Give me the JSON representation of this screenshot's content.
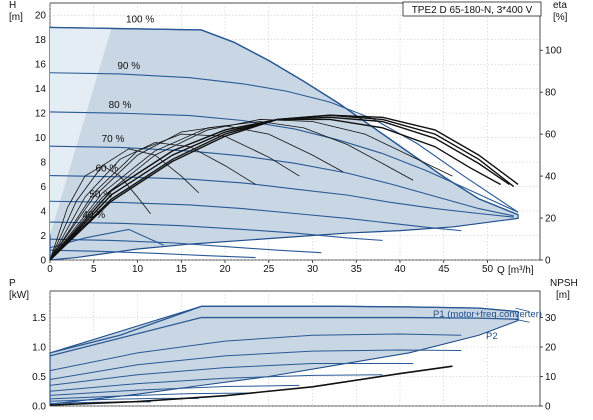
{
  "chart_data": [
    {
      "type": "line",
      "title": "TPE2 D 65-180-N, 3*400 V",
      "ylabel": "H",
      "yunit": "[m]",
      "y2label": "eta",
      "y2unit": "[%]",
      "xlabel": "Q",
      "xunit": "[m³/h]",
      "xlim": [
        0,
        56
      ],
      "ylim": [
        0,
        21
      ],
      "y2lim": [
        0,
        122.5
      ],
      "xticks": [
        0,
        5,
        10,
        15,
        20,
        25,
        30,
        35,
        40,
        45,
        50
      ],
      "yticks": [
        0,
        2,
        4,
        6,
        8,
        10,
        12,
        14,
        16,
        18,
        20
      ],
      "y2ticks": [
        0,
        20,
        40,
        60,
        80,
        100
      ],
      "grid": true,
      "envelope_fill": "#c9d6e3",
      "envelope_edge": "#1f4e8c",
      "curve_color": "#2a5a96",
      "eff_color": "#111111",
      "speed_curves": [
        {
          "label": "100 %",
          "x": [
            0,
            17.3,
            21,
            25,
            29,
            33,
            37,
            41,
            45,
            49,
            53.5
          ],
          "y": [
            19,
            18.8,
            17.8,
            16.3,
            14.6,
            12.8,
            10.8,
            8.8,
            6.8,
            5.0,
            3.7
          ]
        },
        {
          "label": "90 %",
          "x": [
            0,
            8,
            16,
            22,
            27,
            32,
            37,
            42,
            47,
            53.5
          ],
          "y": [
            15.3,
            15.2,
            14.9,
            14.4,
            13.8,
            12.9,
            11.5,
            9.5,
            7.0,
            3.9
          ]
        },
        {
          "label": "80 %",
          "x": [
            0,
            8,
            16,
            22,
            28,
            33,
            38,
            43,
            48,
            53.5
          ],
          "y": [
            12.1,
            12.0,
            11.8,
            11.4,
            10.7,
            9.8,
            8.7,
            7.3,
            5.7,
            3.9
          ]
        },
        {
          "label": "70 %",
          "x": [
            0,
            8,
            16,
            22,
            28,
            34,
            39,
            44,
            49,
            53
          ],
          "y": [
            9.3,
            9.2,
            8.9,
            8.5,
            7.9,
            7.1,
            6.2,
            5.2,
            4.2,
            3.6
          ]
        },
        {
          "label": "60 %",
          "x": [
            0,
            8,
            16,
            22,
            28,
            34,
            39,
            44,
            49,
            53
          ],
          "y": [
            6.9,
            6.8,
            6.6,
            6.3,
            5.8,
            5.3,
            4.7,
            4.2,
            3.8,
            3.5
          ]
        },
        {
          "label": "50 %",
          "x": [
            0,
            8,
            16,
            22,
            28,
            34,
            39,
            44,
            47
          ],
          "y": [
            4.8,
            4.7,
            4.5,
            4.2,
            3.8,
            3.4,
            3.0,
            2.6,
            2.4
          ]
        },
        {
          "label": "40 %",
          "x": [
            0,
            8,
            15,
            22,
            28,
            34,
            38
          ],
          "y": [
            3.1,
            3.0,
            2.8,
            2.5,
            2.2,
            1.8,
            1.6
          ]
        },
        {
          "label": "",
          "x": [
            0,
            7,
            14,
            20,
            26,
            31
          ],
          "y": [
            1.7,
            1.6,
            1.4,
            1.1,
            0.8,
            0.6
          ]
        },
        {
          "label": "",
          "x": [
            0,
            6,
            12,
            18,
            23.5
          ],
          "y": [
            0.8,
            0.7,
            0.55,
            0.35,
            0.2
          ]
        },
        {
          "label": "",
          "x": [
            0,
            4,
            9,
            13
          ],
          "y": [
            1.0,
            1.8,
            2.5,
            1.2
          ]
        }
      ],
      "efficiency_curves": [
        {
          "x": [
            0,
            7,
            14,
            20,
            26,
            32,
            38,
            44,
            49,
            53.5
          ],
          "y": [
            0,
            28,
            47,
            59,
            67,
            69,
            68,
            62,
            50,
            36
          ]
        },
        {
          "x": [
            0,
            7,
            14,
            20,
            26,
            32,
            38,
            44,
            49,
            53
          ],
          "y": [
            0,
            29,
            48,
            60,
            67,
            69,
            67,
            60,
            48,
            35
          ]
        },
        {
          "x": [
            0,
            7,
            14,
            20,
            26,
            32,
            38,
            44,
            49,
            52.5
          ],
          "y": [
            0,
            31,
            50,
            61,
            67,
            68,
            66,
            58,
            46,
            36
          ]
        },
        {
          "x": [
            0,
            7,
            14,
            20,
            26,
            32,
            38,
            44,
            48,
            51.5
          ],
          "y": [
            0,
            33,
            52,
            62,
            67,
            67,
            63,
            54,
            44,
            36
          ]
        },
        {
          "x": [
            0,
            6,
            12,
            18,
            24,
            30,
            36,
            41,
            46
          ],
          "y": [
            0,
            30,
            50,
            62,
            67,
            66,
            60,
            50,
            40
          ]
        },
        {
          "x": [
            0,
            6,
            12,
            18,
            24,
            29,
            34,
            38,
            41.5
          ],
          "y": [
            0,
            32,
            52,
            63,
            66,
            63,
            55,
            46,
            38
          ]
        },
        {
          "x": [
            0,
            5,
            10,
            15,
            20,
            25,
            30,
            33.5
          ],
          "y": [
            0,
            30,
            50,
            61,
            64,
            60,
            50,
            42
          ]
        },
        {
          "x": [
            0,
            5,
            10,
            15,
            20,
            25,
            28.5
          ],
          "y": [
            0,
            32,
            52,
            60,
            59,
            49,
            40
          ]
        },
        {
          "x": [
            0,
            4,
            8,
            12,
            16,
            20,
            23.5
          ],
          "y": [
            0,
            30,
            48,
            56,
            54,
            45,
            36
          ]
        },
        {
          "x": [
            0,
            3,
            6,
            9,
            12,
            15,
            17
          ],
          "y": [
            0,
            28,
            45,
            53,
            50,
            40,
            32
          ]
        },
        {
          "x": [
            0,
            2,
            4,
            6,
            8,
            10,
            11.5
          ],
          "y": [
            0,
            25,
            40,
            45,
            40,
            30,
            22
          ]
        }
      ],
      "envelope": {
        "x": [
          0,
          17.3,
          21,
          25,
          29,
          33,
          37,
          41,
          45,
          49,
          53.5,
          53.5,
          46,
          40,
          34,
          28,
          22,
          16,
          10,
          6,
          3,
          0
        ],
        "y": [
          19,
          18.8,
          17.8,
          16.3,
          14.6,
          12.8,
          10.8,
          8.8,
          6.8,
          5.0,
          3.7,
          3.4,
          2.7,
          2.4,
          2.2,
          1.9,
          1.6,
          1.3,
          0.9,
          0.5,
          0.2,
          0
        ]
      }
    },
    {
      "type": "line",
      "ylabel": "P",
      "yunit": "[kW]",
      "y2label": "NPSH",
      "y2unit": "[m]",
      "xlim": [
        0,
        56
      ],
      "ylim": [
        0,
        1.95
      ],
      "y2lim": [
        0,
        39
      ],
      "yticks": [
        0.0,
        0.5,
        1.0,
        1.5
      ],
      "yticklabels": [
        "0.0",
        "0.5",
        "1.0",
        "1.5"
      ],
      "y2ticks": [
        0,
        10,
        20,
        30
      ],
      "grid": true,
      "labels": {
        "p1": "P1 (motor+freq.converter)",
        "p2": "P2"
      },
      "power_curves": [
        {
          "x": [
            0,
            8,
            17.3,
            25,
            33,
            41,
            49,
            53.5
          ],
          "y": [
            0.9,
            1.2,
            1.69,
            1.69,
            1.69,
            1.68,
            1.66,
            1.6
          ]
        },
        {
          "x": [
            0,
            17.3,
            29,
            41,
            49,
            53.5
          ],
          "y": [
            0.85,
            1.5,
            1.5,
            1.5,
            1.49,
            1.47
          ]
        },
        {
          "x": [
            0,
            10,
            20,
            30,
            40,
            47
          ],
          "y": [
            0.6,
            0.9,
            1.1,
            1.2,
            1.22,
            1.2
          ]
        },
        {
          "x": [
            0,
            10,
            20,
            30,
            40,
            47
          ],
          "y": [
            0.45,
            0.7,
            0.85,
            0.93,
            0.95,
            0.94
          ]
        },
        {
          "x": [
            0,
            10,
            20,
            30,
            41.5
          ],
          "y": [
            0.35,
            0.53,
            0.65,
            0.72,
            0.72
          ]
        },
        {
          "x": [
            0,
            10,
            20,
            30,
            38
          ],
          "y": [
            0.25,
            0.38,
            0.47,
            0.52,
            0.53
          ]
        },
        {
          "x": [
            0,
            10,
            20,
            28.5
          ],
          "y": [
            0.18,
            0.27,
            0.33,
            0.35
          ]
        },
        {
          "x": [
            0,
            8,
            16,
            23.5
          ],
          "y": [
            0.12,
            0.17,
            0.21,
            0.22
          ]
        },
        {
          "x": [
            0,
            6,
            12,
            17
          ],
          "y": [
            0.08,
            0.11,
            0.13,
            0.13
          ]
        },
        {
          "x": [
            0,
            4,
            8,
            11.5
          ],
          "y": [
            0.04,
            0.06,
            0.07,
            0.07
          ]
        }
      ],
      "npsh_curve": {
        "x": [
          0,
          10,
          20,
          30,
          40,
          46
        ],
        "y": [
          0.3,
          1.5,
          3.5,
          6.5,
          11.0,
          13.5
        ]
      },
      "envelope": {
        "x": [
          0,
          17.3,
          25,
          33,
          41,
          49,
          53.5,
          53.5,
          49,
          41,
          33,
          25,
          17.3,
          10,
          0
        ],
        "y": [
          0.9,
          1.69,
          1.69,
          1.69,
          1.68,
          1.66,
          1.6,
          1.45,
          1.2,
          0.9,
          0.7,
          0.5,
          0.35,
          0.2,
          0.03
        ]
      }
    }
  ]
}
